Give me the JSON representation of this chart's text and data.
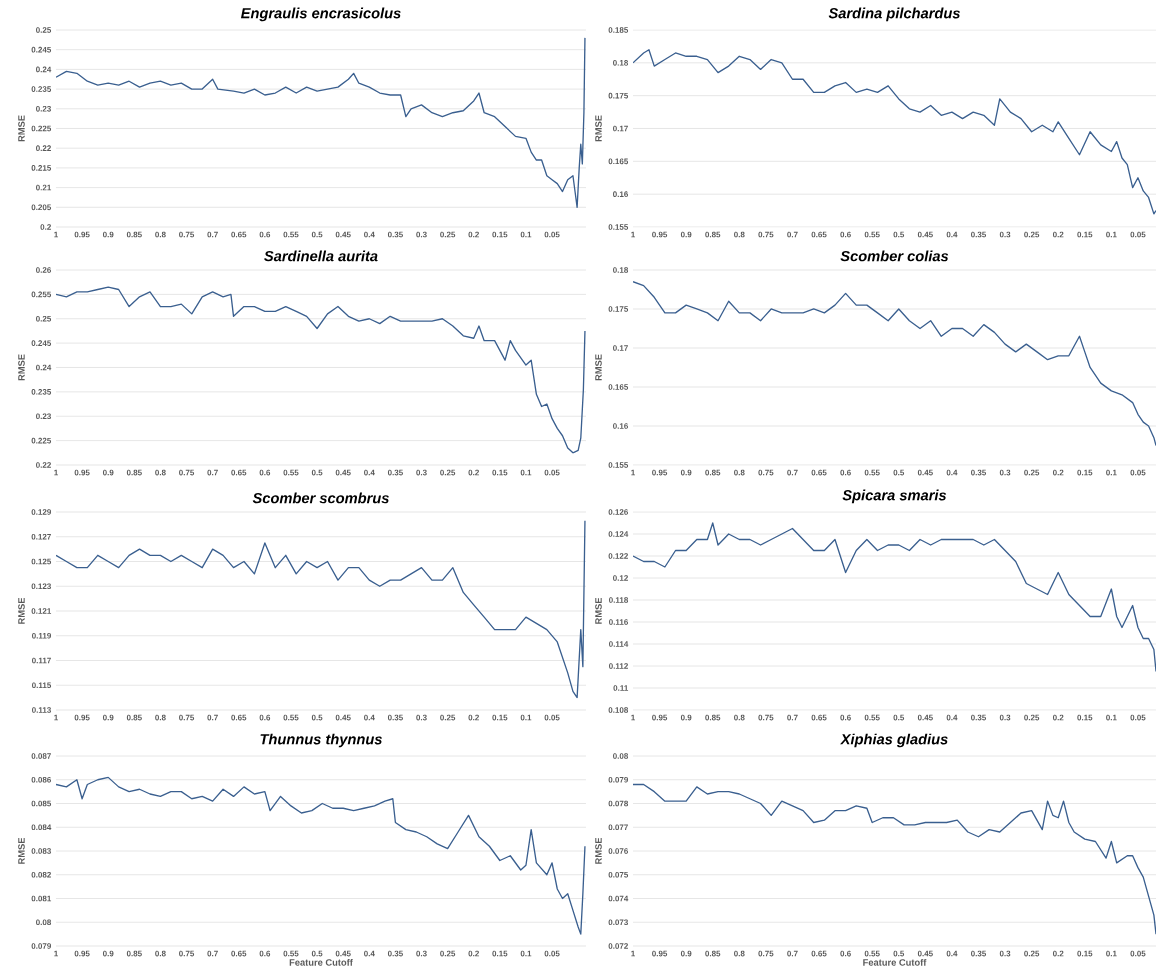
{
  "chart_data": [
    {
      "type": "line",
      "title": "Engraulis encrasicolus",
      "ylabel": "RMSE",
      "color": "#3a5f8f",
      "grid": "y",
      "xlim": [
        1,
        -0.015
      ],
      "xticks": [
        1,
        0.95,
        0.9,
        0.85,
        0.8,
        0.75,
        0.7,
        0.65,
        0.6,
        0.55,
        0.5,
        0.45,
        0.4,
        0.35,
        0.3,
        0.25,
        0.2,
        0.15,
        0.1,
        0.05
      ],
      "ylim": [
        0.2,
        0.25
      ],
      "yticks": [
        0.2,
        0.205,
        0.21,
        0.215,
        0.22,
        0.225,
        0.23,
        0.235,
        0.24,
        0.245,
        0.25
      ],
      "x": [
        1,
        0.98,
        0.96,
        0.94,
        0.92,
        0.9,
        0.88,
        0.86,
        0.84,
        0.82,
        0.8,
        0.78,
        0.76,
        0.74,
        0.72,
        0.7,
        0.69,
        0.66,
        0.64,
        0.62,
        0.6,
        0.58,
        0.56,
        0.54,
        0.52,
        0.5,
        0.48,
        0.46,
        0.44,
        0.43,
        0.42,
        0.4,
        0.38,
        0.36,
        0.34,
        0.33,
        0.32,
        0.3,
        0.28,
        0.26,
        0.24,
        0.22,
        0.2,
        0.19,
        0.18,
        0.16,
        0.14,
        0.12,
        0.1,
        0.09,
        0.08,
        0.07,
        0.06,
        0.05,
        0.04,
        0.03,
        0.02,
        0.01,
        0.005,
        0.002,
        -0.002,
        -0.005,
        -0.008,
        -0.011,
        -0.013
      ],
      "values": [
        0.238,
        0.2395,
        0.239,
        0.237,
        0.236,
        0.2365,
        0.236,
        0.237,
        0.2355,
        0.2365,
        0.237,
        0.236,
        0.2365,
        0.235,
        0.235,
        0.2375,
        0.235,
        0.2345,
        0.234,
        0.235,
        0.2335,
        0.234,
        0.2355,
        0.234,
        0.2355,
        0.2345,
        0.235,
        0.2355,
        0.2375,
        0.239,
        0.2365,
        0.2355,
        0.234,
        0.2335,
        0.2335,
        0.228,
        0.23,
        0.231,
        0.229,
        0.228,
        0.229,
        0.2295,
        0.232,
        0.234,
        0.229,
        0.228,
        0.2255,
        0.223,
        0.2225,
        0.219,
        0.217,
        0.217,
        0.213,
        0.212,
        0.211,
        0.209,
        0.212,
        0.213,
        0.208,
        0.205,
        0.215,
        0.221,
        0.216,
        0.229,
        0.248
      ]
    },
    {
      "type": "line",
      "title": "Sardina pilchardus",
      "ylabel": "RMSE",
      "color": "#3a5f8f",
      "grid": "y",
      "xlim": [
        1,
        0.016
      ],
      "xticks": [
        1,
        0.95,
        0.9,
        0.85,
        0.8,
        0.75,
        0.7,
        0.65,
        0.6,
        0.55,
        0.5,
        0.45,
        0.4,
        0.35,
        0.3,
        0.25,
        0.2,
        0.15,
        0.1,
        0.05
      ],
      "ylim": [
        0.155,
        0.185
      ],
      "yticks": [
        0.155,
        0.16,
        0.165,
        0.17,
        0.175,
        0.18,
        0.185
      ],
      "x": [
        1,
        0.98,
        0.97,
        0.96,
        0.94,
        0.92,
        0.9,
        0.88,
        0.86,
        0.84,
        0.82,
        0.8,
        0.78,
        0.76,
        0.74,
        0.72,
        0.7,
        0.68,
        0.66,
        0.64,
        0.62,
        0.6,
        0.58,
        0.56,
        0.54,
        0.52,
        0.5,
        0.48,
        0.46,
        0.44,
        0.42,
        0.4,
        0.38,
        0.36,
        0.34,
        0.32,
        0.31,
        0.29,
        0.27,
        0.25,
        0.23,
        0.21,
        0.2,
        0.18,
        0.16,
        0.14,
        0.12,
        0.1,
        0.09,
        0.08,
        0.07,
        0.06,
        0.05,
        0.04,
        0.03,
        0.02,
        0.016
      ],
      "values": [
        0.18,
        0.1815,
        0.182,
        0.1795,
        0.1805,
        0.1815,
        0.181,
        0.181,
        0.1805,
        0.1785,
        0.1795,
        0.181,
        0.1805,
        0.179,
        0.1805,
        0.18,
        0.1775,
        0.1775,
        0.1755,
        0.1755,
        0.1765,
        0.177,
        0.1755,
        0.176,
        0.1755,
        0.1765,
        0.1745,
        0.173,
        0.1725,
        0.1735,
        0.172,
        0.1725,
        0.1715,
        0.1725,
        0.172,
        0.1705,
        0.1745,
        0.1725,
        0.1715,
        0.1695,
        0.1705,
        0.1695,
        0.171,
        0.1685,
        0.166,
        0.1695,
        0.1675,
        0.1665,
        0.168,
        0.1655,
        0.1645,
        0.161,
        0.1625,
        0.1605,
        0.1595,
        0.157,
        0.1575
      ]
    },
    {
      "type": "line",
      "title": "Sardinella aurita",
      "ylabel": "RMSE",
      "color": "#3a5f8f",
      "grid": "y",
      "xlim": [
        1,
        -0.015
      ],
      "xticks": [
        1,
        0.95,
        0.9,
        0.85,
        0.8,
        0.75,
        0.7,
        0.65,
        0.6,
        0.55,
        0.5,
        0.45,
        0.4,
        0.35,
        0.3,
        0.25,
        0.2,
        0.15,
        0.1,
        0.05
      ],
      "ylim": [
        0.22,
        0.26
      ],
      "yticks": [
        0.22,
        0.225,
        0.23,
        0.235,
        0.24,
        0.245,
        0.25,
        0.255,
        0.26
      ],
      "x": [
        1,
        0.98,
        0.96,
        0.94,
        0.92,
        0.9,
        0.88,
        0.86,
        0.84,
        0.82,
        0.8,
        0.78,
        0.76,
        0.74,
        0.72,
        0.7,
        0.68,
        0.665,
        0.66,
        0.64,
        0.62,
        0.6,
        0.58,
        0.56,
        0.54,
        0.52,
        0.5,
        0.48,
        0.46,
        0.44,
        0.42,
        0.4,
        0.38,
        0.36,
        0.34,
        0.32,
        0.3,
        0.28,
        0.26,
        0.24,
        0.22,
        0.2,
        0.19,
        0.18,
        0.16,
        0.14,
        0.13,
        0.12,
        0.1,
        0.09,
        0.08,
        0.07,
        0.06,
        0.05,
        0.04,
        0.03,
        0.02,
        0.01,
        0,
        -0.005,
        -0.01,
        -0.013
      ],
      "values": [
        0.255,
        0.2545,
        0.2555,
        0.2555,
        0.256,
        0.2565,
        0.256,
        0.2525,
        0.2545,
        0.2555,
        0.2525,
        0.2525,
        0.253,
        0.251,
        0.2545,
        0.2555,
        0.2545,
        0.255,
        0.2505,
        0.2525,
        0.2525,
        0.2515,
        0.2515,
        0.2525,
        0.2515,
        0.2505,
        0.248,
        0.251,
        0.2525,
        0.2505,
        0.2495,
        0.25,
        0.249,
        0.2505,
        0.2495,
        0.2495,
        0.2495,
        0.2495,
        0.25,
        0.2485,
        0.2465,
        0.246,
        0.2485,
        0.2455,
        0.2455,
        0.2415,
        0.2455,
        0.2435,
        0.2405,
        0.2415,
        0.2345,
        0.232,
        0.2325,
        0.2295,
        0.2275,
        0.226,
        0.2235,
        0.2225,
        0.223,
        0.2255,
        0.2355,
        0.2475
      ]
    },
    {
      "type": "line",
      "title": "Scomber colias",
      "ylabel": "RMSE",
      "color": "#3a5f8f",
      "grid": "y",
      "xlim": [
        1,
        0.016
      ],
      "xticks": [
        1,
        0.95,
        0.9,
        0.85,
        0.8,
        0.75,
        0.7,
        0.65,
        0.6,
        0.55,
        0.5,
        0.45,
        0.4,
        0.35,
        0.3,
        0.25,
        0.2,
        0.15,
        0.1,
        0.05
      ],
      "ylim": [
        0.155,
        0.18
      ],
      "yticks": [
        0.155,
        0.16,
        0.165,
        0.17,
        0.175,
        0.18
      ],
      "x": [
        1,
        0.98,
        0.96,
        0.95,
        0.94,
        0.92,
        0.9,
        0.88,
        0.86,
        0.84,
        0.82,
        0.8,
        0.78,
        0.76,
        0.74,
        0.72,
        0.7,
        0.68,
        0.66,
        0.64,
        0.62,
        0.6,
        0.58,
        0.56,
        0.54,
        0.52,
        0.5,
        0.48,
        0.46,
        0.44,
        0.42,
        0.4,
        0.38,
        0.36,
        0.34,
        0.32,
        0.3,
        0.28,
        0.26,
        0.24,
        0.22,
        0.2,
        0.18,
        0.16,
        0.15,
        0.14,
        0.12,
        0.1,
        0.08,
        0.06,
        0.05,
        0.04,
        0.03,
        0.02,
        0.016
      ],
      "values": [
        0.1785,
        0.178,
        0.1765,
        0.1755,
        0.1745,
        0.1745,
        0.1755,
        0.175,
        0.1745,
        0.1735,
        0.176,
        0.1745,
        0.1745,
        0.1735,
        0.175,
        0.1745,
        0.1745,
        0.1745,
        0.175,
        0.1745,
        0.1755,
        0.177,
        0.1755,
        0.1755,
        0.1745,
        0.1735,
        0.175,
        0.1735,
        0.1725,
        0.1735,
        0.1715,
        0.1725,
        0.1725,
        0.1715,
        0.173,
        0.172,
        0.1705,
        0.1695,
        0.1705,
        0.1695,
        0.1685,
        0.169,
        0.169,
        0.1715,
        0.1695,
        0.1675,
        0.1655,
        0.1645,
        0.164,
        0.163,
        0.1615,
        0.1605,
        0.16,
        0.1585,
        0.1575
      ]
    },
    {
      "type": "line",
      "title": "Scomber scombrus",
      "ylabel": "RMSE",
      "color": "#3a5f8f",
      "grid": "y",
      "xlim": [
        1,
        -0.015
      ],
      "xticks": [
        1,
        0.95,
        0.9,
        0.85,
        0.8,
        0.75,
        0.7,
        0.65,
        0.6,
        0.55,
        0.5,
        0.45,
        0.4,
        0.35,
        0.3,
        0.25,
        0.2,
        0.15,
        0.1,
        0.05
      ],
      "ylim": [
        0.113,
        0.129
      ],
      "yticks": [
        0.113,
        0.115,
        0.117,
        0.119,
        0.121,
        0.123,
        0.125,
        0.127,
        0.129
      ],
      "x": [
        1,
        0.98,
        0.96,
        0.94,
        0.92,
        0.9,
        0.88,
        0.86,
        0.84,
        0.82,
        0.8,
        0.78,
        0.76,
        0.74,
        0.72,
        0.7,
        0.68,
        0.66,
        0.64,
        0.62,
        0.6,
        0.58,
        0.56,
        0.54,
        0.52,
        0.5,
        0.48,
        0.46,
        0.44,
        0.42,
        0.4,
        0.38,
        0.36,
        0.34,
        0.32,
        0.3,
        0.28,
        0.26,
        0.24,
        0.22,
        0.2,
        0.18,
        0.16,
        0.14,
        0.12,
        0.1,
        0.08,
        0.06,
        0.04,
        0.02,
        0.01,
        0.002,
        -0.005,
        -0.009,
        -0.013
      ],
      "values": [
        0.1255,
        0.125,
        0.1245,
        0.1245,
        0.1255,
        0.125,
        0.1245,
        0.1255,
        0.126,
        0.1255,
        0.1255,
        0.125,
        0.1255,
        0.125,
        0.1245,
        0.126,
        0.1255,
        0.1245,
        0.125,
        0.124,
        0.1265,
        0.1245,
        0.1255,
        0.124,
        0.125,
        0.1245,
        0.125,
        0.1235,
        0.1245,
        0.1245,
        0.1235,
        0.123,
        0.1235,
        0.1235,
        0.124,
        0.1245,
        0.1235,
        0.1235,
        0.1245,
        0.1225,
        0.1215,
        0.1205,
        0.1195,
        0.1195,
        0.1195,
        0.1205,
        0.12,
        0.1195,
        0.1185,
        0.116,
        0.1145,
        0.114,
        0.1195,
        0.1165,
        0.1283
      ]
    },
    {
      "type": "line",
      "title": "Spicara smaris",
      "ylabel": "RMSE",
      "color": "#3a5f8f",
      "grid": "y",
      "xlim": [
        1,
        0.016
      ],
      "xticks": [
        1,
        0.95,
        0.9,
        0.85,
        0.8,
        0.75,
        0.7,
        0.65,
        0.6,
        0.55,
        0.5,
        0.45,
        0.4,
        0.35,
        0.3,
        0.25,
        0.2,
        0.15,
        0.1,
        0.05
      ],
      "ylim": [
        0.108,
        0.126
      ],
      "yticks": [
        0.108,
        0.11,
        0.112,
        0.114,
        0.116,
        0.118,
        0.12,
        0.122,
        0.124,
        0.126
      ],
      "x": [
        1,
        0.98,
        0.96,
        0.94,
        0.92,
        0.9,
        0.88,
        0.86,
        0.85,
        0.84,
        0.82,
        0.8,
        0.78,
        0.76,
        0.74,
        0.72,
        0.7,
        0.68,
        0.66,
        0.64,
        0.62,
        0.6,
        0.58,
        0.56,
        0.54,
        0.52,
        0.5,
        0.48,
        0.46,
        0.44,
        0.42,
        0.4,
        0.38,
        0.36,
        0.34,
        0.32,
        0.3,
        0.28,
        0.26,
        0.24,
        0.22,
        0.2,
        0.18,
        0.16,
        0.14,
        0.12,
        0.1,
        0.09,
        0.08,
        0.06,
        0.05,
        0.04,
        0.03,
        0.02,
        0.016
      ],
      "values": [
        0.122,
        0.1215,
        0.1215,
        0.121,
        0.1225,
        0.1225,
        0.1235,
        0.1235,
        0.125,
        0.123,
        0.124,
        0.1235,
        0.1235,
        0.123,
        0.1235,
        0.124,
        0.1245,
        0.1235,
        0.1225,
        0.1225,
        0.1235,
        0.1205,
        0.1225,
        0.1235,
        0.1225,
        0.123,
        0.123,
        0.1225,
        0.1235,
        0.123,
        0.1235,
        0.1235,
        0.1235,
        0.1235,
        0.123,
        0.1235,
        0.1225,
        0.1215,
        0.1195,
        0.119,
        0.1185,
        0.1205,
        0.1185,
        0.1175,
        0.1165,
        0.1165,
        0.119,
        0.1165,
        0.1155,
        0.1175,
        0.1155,
        0.1145,
        0.1145,
        0.1135,
        0.1115
      ]
    },
    {
      "type": "line",
      "title": "Thunnus thynnus",
      "xlabel": "Feature Cutoff",
      "ylabel": "RMSE",
      "color": "#3a5f8f",
      "grid": "y",
      "xlim": [
        1,
        -0.015
      ],
      "xticks": [
        1,
        0.95,
        0.9,
        0.85,
        0.8,
        0.75,
        0.7,
        0.65,
        0.6,
        0.55,
        0.5,
        0.45,
        0.4,
        0.35,
        0.3,
        0.25,
        0.2,
        0.15,
        0.1,
        0.05
      ],
      "ylim": [
        0.079,
        0.087
      ],
      "yticks": [
        0.079,
        0.08,
        0.081,
        0.082,
        0.083,
        0.084,
        0.085,
        0.086,
        0.087
      ],
      "x": [
        1,
        0.98,
        0.96,
        0.95,
        0.94,
        0.92,
        0.9,
        0.88,
        0.86,
        0.84,
        0.82,
        0.8,
        0.78,
        0.76,
        0.74,
        0.72,
        0.7,
        0.68,
        0.66,
        0.64,
        0.62,
        0.6,
        0.59,
        0.57,
        0.55,
        0.53,
        0.51,
        0.49,
        0.47,
        0.45,
        0.43,
        0.41,
        0.39,
        0.37,
        0.355,
        0.35,
        0.33,
        0.31,
        0.29,
        0.27,
        0.25,
        0.23,
        0.21,
        0.19,
        0.17,
        0.15,
        0.13,
        0.11,
        0.1,
        0.09,
        0.08,
        0.06,
        0.05,
        0.04,
        0.03,
        0.02,
        0.01,
        0,
        -0.005,
        -0.009,
        -0.013
      ],
      "values": [
        0.0858,
        0.0857,
        0.086,
        0.0852,
        0.0858,
        0.086,
        0.0861,
        0.0857,
        0.0855,
        0.0856,
        0.0854,
        0.0853,
        0.0855,
        0.0855,
        0.0852,
        0.0853,
        0.0851,
        0.0856,
        0.0853,
        0.0857,
        0.0854,
        0.0855,
        0.0847,
        0.0853,
        0.0849,
        0.0846,
        0.0847,
        0.085,
        0.0848,
        0.0848,
        0.0847,
        0.0848,
        0.0849,
        0.0851,
        0.0852,
        0.0842,
        0.0839,
        0.0838,
        0.0836,
        0.0833,
        0.0831,
        0.0838,
        0.0845,
        0.0836,
        0.0832,
        0.0826,
        0.0828,
        0.0822,
        0.0824,
        0.0839,
        0.0825,
        0.082,
        0.0825,
        0.0814,
        0.081,
        0.0812,
        0.0805,
        0.0798,
        0.0795,
        0.0812,
        0.0832
      ]
    },
    {
      "type": "line",
      "title": "Xiphias gladius",
      "xlabel": "Feature Cutoff",
      "ylabel": "RMSE",
      "color": "#3a5f8f",
      "grid": "y",
      "xlim": [
        1,
        0.016
      ],
      "xticks": [
        1,
        0.95,
        0.9,
        0.85,
        0.8,
        0.75,
        0.7,
        0.65,
        0.6,
        0.55,
        0.5,
        0.45,
        0.4,
        0.35,
        0.3,
        0.25,
        0.2,
        0.15,
        0.1,
        0.05
      ],
      "ylim": [
        0.072,
        0.08
      ],
      "yticks": [
        0.072,
        0.073,
        0.074,
        0.075,
        0.076,
        0.077,
        0.078,
        0.079,
        0.08
      ],
      "x": [
        1,
        0.98,
        0.96,
        0.94,
        0.92,
        0.9,
        0.88,
        0.86,
        0.84,
        0.82,
        0.8,
        0.78,
        0.76,
        0.74,
        0.72,
        0.7,
        0.68,
        0.66,
        0.64,
        0.62,
        0.6,
        0.58,
        0.56,
        0.55,
        0.53,
        0.51,
        0.49,
        0.47,
        0.45,
        0.43,
        0.41,
        0.39,
        0.37,
        0.35,
        0.33,
        0.31,
        0.29,
        0.27,
        0.25,
        0.23,
        0.22,
        0.21,
        0.2,
        0.19,
        0.18,
        0.17,
        0.15,
        0.13,
        0.11,
        0.1,
        0.09,
        0.07,
        0.06,
        0.05,
        0.04,
        0.03,
        0.02,
        0.016
      ],
      "values": [
        0.0788,
        0.0788,
        0.0785,
        0.0781,
        0.0781,
        0.0781,
        0.0787,
        0.0784,
        0.0785,
        0.0785,
        0.0784,
        0.0782,
        0.078,
        0.0775,
        0.0781,
        0.0779,
        0.0777,
        0.0772,
        0.0773,
        0.0777,
        0.0777,
        0.0779,
        0.0778,
        0.0772,
        0.0774,
        0.0774,
        0.0771,
        0.0771,
        0.0772,
        0.0772,
        0.0772,
        0.0773,
        0.0768,
        0.0766,
        0.0769,
        0.0768,
        0.0772,
        0.0776,
        0.0777,
        0.0769,
        0.0781,
        0.0775,
        0.0774,
        0.0781,
        0.0772,
        0.0768,
        0.0765,
        0.0764,
        0.0757,
        0.0764,
        0.0755,
        0.0758,
        0.0758,
        0.0753,
        0.0749,
        0.0741,
        0.0733,
        0.0725
      ]
    }
  ]
}
